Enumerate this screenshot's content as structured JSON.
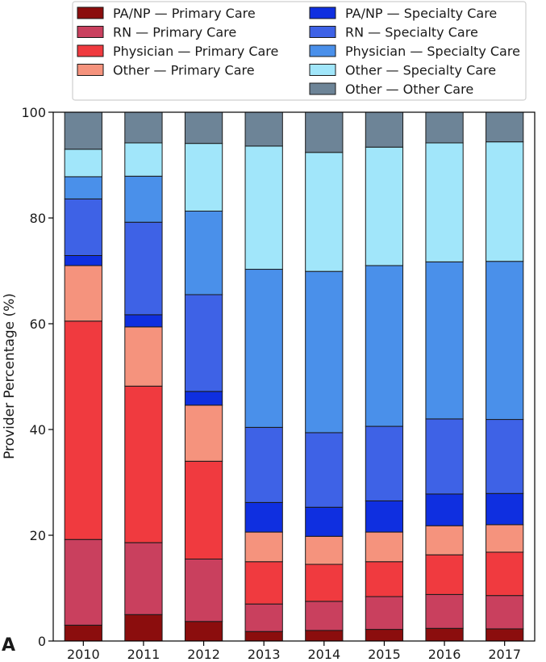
{
  "panel_label": "A",
  "chart_data": {
    "type": "bar",
    "stacked": true,
    "title": "",
    "xlabel": "",
    "ylabel": "Provider Percentage (%)",
    "ylim": [
      0,
      100
    ],
    "yticks": [
      0,
      20,
      40,
      60,
      80,
      100
    ],
    "grid": false,
    "legend_position": "top",
    "categories": [
      "2010",
      "2011",
      "2012",
      "2013",
      "2014",
      "2015",
      "2016",
      "2017"
    ],
    "series": [
      {
        "name": "PA/NP — Primary Care",
        "color": "#8b0d0d",
        "values": [
          3.0,
          5.0,
          3.7,
          1.8,
          2.0,
          2.2,
          2.4,
          2.3
        ]
      },
      {
        "name": "RN — Primary Care",
        "color": "#c9405e",
        "values": [
          16.2,
          13.6,
          11.8,
          5.2,
          5.5,
          6.2,
          6.4,
          6.3
        ]
      },
      {
        "name": "Physician — Primary Care",
        "color": "#f03a3f",
        "values": [
          41.3,
          29.6,
          18.5,
          8.0,
          7.0,
          6.6,
          7.5,
          8.2
        ]
      },
      {
        "name": "Other — Primary Care",
        "color": "#f5937d",
        "values": [
          10.5,
          11.2,
          10.6,
          5.6,
          5.3,
          5.6,
          5.5,
          5.2
        ]
      },
      {
        "name": "PA/NP — Specialty Care",
        "color": "#0f2fe0",
        "values": [
          1.9,
          2.3,
          2.6,
          5.6,
          5.5,
          5.9,
          6.0,
          5.9
        ]
      },
      {
        "name": "RN — Specialty Care",
        "color": "#3e62e6",
        "values": [
          10.7,
          17.5,
          18.3,
          14.2,
          14.1,
          14.1,
          14.2,
          14.0
        ]
      },
      {
        "name": "Physician — Specialty Care",
        "color": "#4a90ea",
        "values": [
          4.2,
          8.7,
          15.8,
          29.9,
          30.5,
          30.4,
          29.7,
          29.9
        ]
      },
      {
        "name": "Other — Specialty Care",
        "color": "#a1e6fa",
        "values": [
          5.2,
          6.3,
          12.8,
          23.3,
          22.5,
          22.4,
          22.5,
          22.6
        ]
      },
      {
        "name": "Other — Other Care",
        "color": "#6d8497",
        "values": [
          7.0,
          5.8,
          5.9,
          6.4,
          7.6,
          6.6,
          5.8,
          5.6
        ]
      }
    ]
  }
}
